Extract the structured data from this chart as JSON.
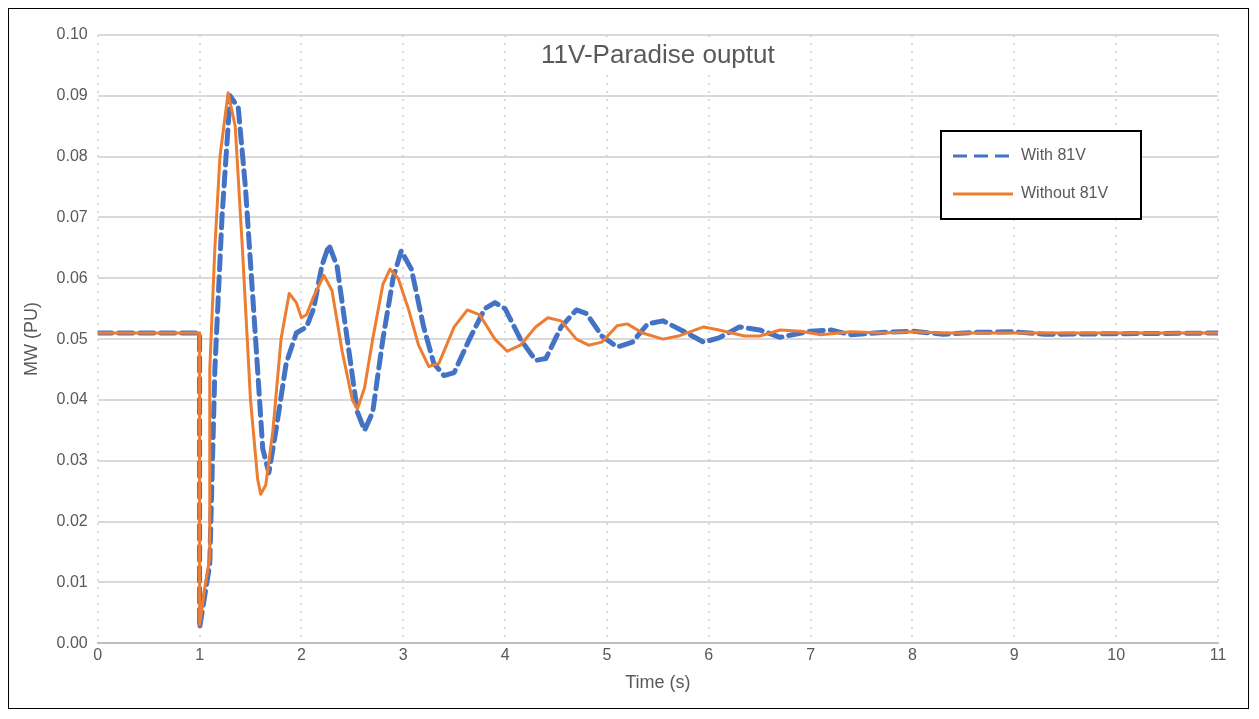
{
  "chart_data": {
    "type": "line",
    "title": "11V-Paradise ouptut",
    "xlabel": "Time (s)",
    "ylabel": "MW (PU)",
    "xlim": [
      0,
      11
    ],
    "xticks": [
      0,
      1,
      2,
      3,
      4,
      5,
      6,
      7,
      8,
      9,
      10,
      11
    ],
    "ylim": [
      0,
      0.1
    ],
    "yticks": [
      {
        "value": 0,
        "label": "0.00"
      },
      {
        "value": 0.01,
        "label": "0.01"
      },
      {
        "value": 0.02,
        "label": "0.02"
      },
      {
        "value": 0.03,
        "label": "0.03"
      },
      {
        "value": 0.04,
        "label": "0.04"
      },
      {
        "value": 0.05,
        "label": "0.05"
      },
      {
        "value": 0.06,
        "label": "0.06"
      },
      {
        "value": 0.07,
        "label": "0.07"
      },
      {
        "value": 0.08,
        "label": "0.08"
      },
      {
        "value": 0.09,
        "label": "0.09"
      },
      {
        "value": 0.1,
        "label": "0.10"
      }
    ],
    "grid": true,
    "legend": "top right",
    "marker": "none",
    "series": [
      {
        "name": "With 81V",
        "color": "#4472c4",
        "line_style": "dashed",
        "x": [
          0,
          1,
          1,
          1.1,
          1.15,
          1.22,
          1.3,
          1.38,
          1.45,
          1.55,
          1.62,
          1.68,
          1.75,
          1.85,
          1.95,
          2.05,
          2.12,
          2.2,
          2.27,
          2.35,
          2.45,
          2.55,
          2.62,
          2.7,
          2.8,
          2.9,
          2.98,
          3.08,
          3.2,
          3.3,
          3.4,
          3.5,
          3.65,
          3.8,
          3.9,
          4,
          4.15,
          4.3,
          4.4,
          4.55,
          4.7,
          4.8,
          4.95,
          5.1,
          5.25,
          5.4,
          5.55,
          5.75,
          5.95,
          6.1,
          6.3,
          6.5,
          6.7,
          7,
          7.2,
          7.4,
          7.7,
          8,
          8.3,
          8.6,
          9,
          9.3,
          11
        ],
        "values": [
          0.051,
          0.051,
          0.0025,
          0.013,
          0.045,
          0.07,
          0.09,
          0.088,
          0.075,
          0.05,
          0.032,
          0.028,
          0.035,
          0.046,
          0.051,
          0.052,
          0.055,
          0.062,
          0.0655,
          0.062,
          0.05,
          0.038,
          0.035,
          0.038,
          0.05,
          0.06,
          0.0645,
          0.0615,
          0.052,
          0.046,
          0.044,
          0.0445,
          0.05,
          0.055,
          0.056,
          0.055,
          0.05,
          0.0465,
          0.0468,
          0.052,
          0.0548,
          0.0542,
          0.0505,
          0.0487,
          0.0495,
          0.0525,
          0.053,
          0.0513,
          0.0495,
          0.0502,
          0.052,
          0.0515,
          0.0503,
          0.0513,
          0.0515,
          0.0507,
          0.0511,
          0.0513,
          0.0508,
          0.0511,
          0.0512,
          0.0508,
          0.051
        ]
      },
      {
        "name": "Without 81V",
        "color": "#ed7d31",
        "line_style": "solid",
        "x": [
          0,
          1,
          1,
          1.05,
          1.1,
          1.1,
          1.15,
          1.2,
          1.28,
          1.35,
          1.42,
          1.5,
          1.57,
          1.6,
          1.65,
          1.72,
          1.8,
          1.88,
          1.95,
          2,
          2.05,
          2.12,
          2.22,
          2.3,
          2.4,
          2.5,
          2.55,
          2.62,
          2.7,
          2.8,
          2.87,
          2.95,
          3.05,
          3.15,
          3.25,
          3.35,
          3.5,
          3.63,
          3.75,
          3.9,
          4.02,
          4.15,
          4.3,
          4.42,
          4.55,
          4.7,
          4.82,
          4.95,
          5.1,
          5.2,
          5.35,
          5.55,
          5.7,
          5.95,
          6.1,
          6.35,
          6.5,
          6.7,
          6.9,
          7.1,
          7.4,
          7.7,
          8,
          8.3,
          11
        ],
        "values": [
          0.051,
          0.051,
          0.003,
          0.009,
          0.014,
          0.045,
          0.065,
          0.08,
          0.0905,
          0.085,
          0.065,
          0.04,
          0.027,
          0.0245,
          0.026,
          0.035,
          0.05,
          0.0575,
          0.056,
          0.0535,
          0.054,
          0.057,
          0.0605,
          0.058,
          0.048,
          0.04,
          0.0385,
          0.042,
          0.05,
          0.059,
          0.0615,
          0.06,
          0.055,
          0.049,
          0.0455,
          0.046,
          0.052,
          0.0548,
          0.054,
          0.05,
          0.048,
          0.049,
          0.052,
          0.0535,
          0.053,
          0.05,
          0.049,
          0.0495,
          0.0522,
          0.0525,
          0.051,
          0.05,
          0.0505,
          0.052,
          0.0515,
          0.0505,
          0.0505,
          0.0515,
          0.0513,
          0.0507,
          0.0512,
          0.051,
          0.0512,
          0.051,
          0.051
        ]
      }
    ]
  }
}
